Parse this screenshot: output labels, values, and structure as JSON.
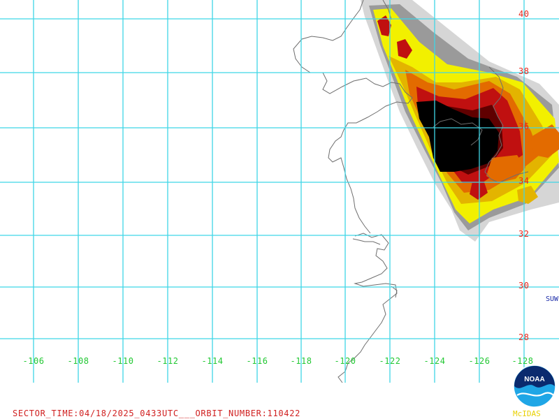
{
  "map": {
    "longitude_labels": [
      "-106",
      "-108",
      "-110",
      "-112",
      "-114",
      "-116",
      "-118",
      "-120",
      "-122",
      "-124",
      "-126",
      "-128"
    ],
    "latitude_labels": [
      "40",
      "38",
      "36",
      "34",
      "32",
      "30",
      "28"
    ],
    "grid_color": "#3fd6e6",
    "coast_color": "#6e6e6e",
    "palette": {
      "light_gray": "#d6d6d6",
      "gray": "#9a9a9a",
      "yellow": "#f2f000",
      "gold": "#e3b400",
      "orange": "#e36b00",
      "red": "#c01010",
      "dark_red": "#600000",
      "black": "#000000"
    }
  },
  "footer": {
    "sector_text": "SECTOR_TIME:04/18/2025_0433UTC___ORBIT_NUMBER:110422"
  },
  "side_label": "SUW",
  "logo": {
    "text": "NOAA",
    "credit": "McIDAS"
  }
}
